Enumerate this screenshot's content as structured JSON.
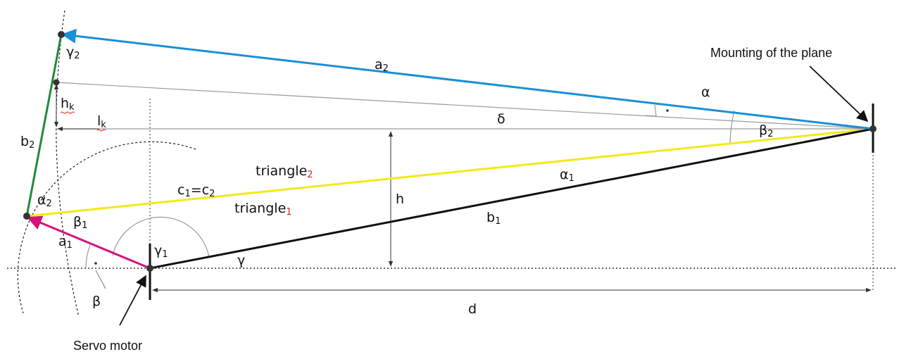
{
  "colors": {
    "blue": "#1a8fd6",
    "yellow": "#f2ea1a",
    "black": "#111111",
    "magenta": "#d4127a",
    "green": "#1f8a3a",
    "gray": "#9a9a9a",
    "red_subscript": "#e02020"
  },
  "labels": {
    "mounting": "Mounting of the plane",
    "servo": "Servo motor",
    "a2": {
      "base": "a",
      "sub": "2"
    },
    "a1": {
      "base": "a",
      "sub": "1"
    },
    "b2": {
      "base": "b",
      "sub": "2"
    },
    "b1": {
      "base": "b",
      "sub": "1"
    },
    "c": {
      "b1": "c",
      "s1": "1",
      "mid": "=c",
      "s2": "2"
    },
    "hk": {
      "base": "h",
      "sub": "k"
    },
    "lk": {
      "base": "l",
      "sub": "k"
    },
    "h": "h",
    "d": "d",
    "alpha": "α",
    "delta": "δ",
    "beta": "β",
    "gamma": "γ",
    "gamma2": {
      "base": "γ",
      "sub": "2"
    },
    "gamma1": {
      "base": "γ",
      "sub": "1"
    },
    "beta2": {
      "base": "β",
      "sub": "2"
    },
    "beta1": {
      "base": "β",
      "sub": "1"
    },
    "alpha2": {
      "base": "α",
      "sub": "2"
    },
    "alpha1": {
      "base": "α",
      "sub": "1"
    },
    "triangle2": {
      "base": "triangle",
      "sub": "2"
    },
    "triangle1": {
      "base": "triangle",
      "sub": "1"
    }
  }
}
